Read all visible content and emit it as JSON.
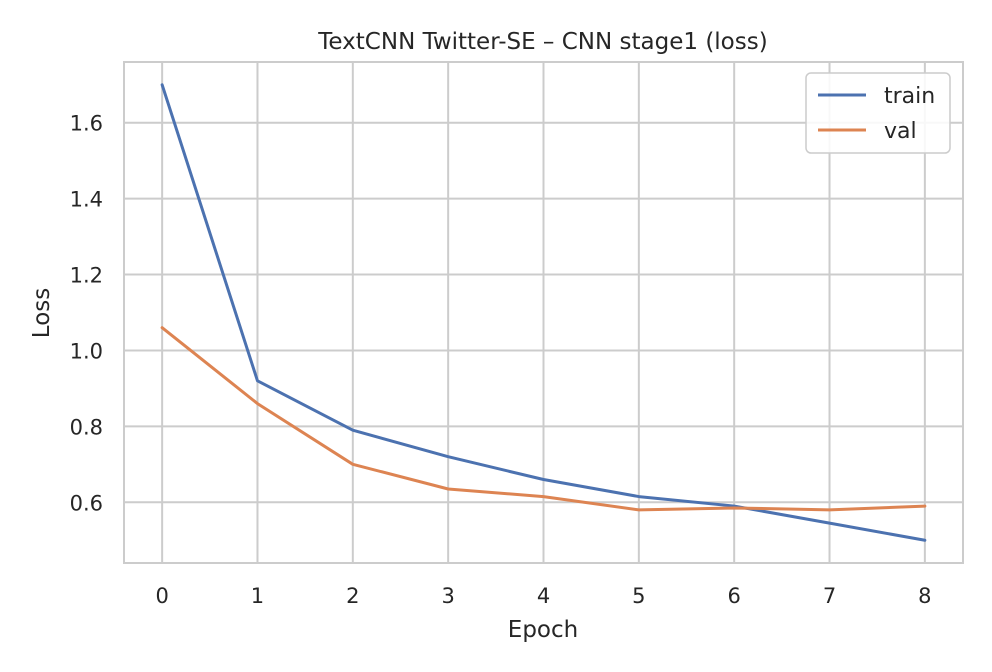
{
  "chart_data": {
    "type": "line",
    "title": "TextCNN Twitter-SE – CNN stage1 (loss)",
    "xlabel": "Epoch",
    "ylabel": "Loss",
    "x": [
      0,
      1,
      2,
      3,
      4,
      5,
      6,
      7,
      8
    ],
    "xticks": [
      "0",
      "1",
      "2",
      "3",
      "4",
      "5",
      "6",
      "7",
      "8"
    ],
    "yticks": [
      "0.6",
      "0.8",
      "1.0",
      "1.2",
      "1.4",
      "1.6"
    ],
    "ytick_values": [
      0.6,
      0.8,
      1.0,
      1.2,
      1.4,
      1.6
    ],
    "xlim": [
      -0.4,
      8.4
    ],
    "ylim": [
      0.44,
      1.76
    ],
    "grid": true,
    "legend_position": "top-right",
    "series": [
      {
        "name": "train",
        "color": "#4c72b0",
        "values": [
          1.7,
          0.92,
          0.79,
          0.72,
          0.66,
          0.615,
          0.59,
          0.545,
          0.5
        ]
      },
      {
        "name": "val",
        "color": "#dd8452",
        "values": [
          1.06,
          0.86,
          0.7,
          0.635,
          0.615,
          0.58,
          0.585,
          0.58,
          0.59
        ]
      }
    ]
  }
}
